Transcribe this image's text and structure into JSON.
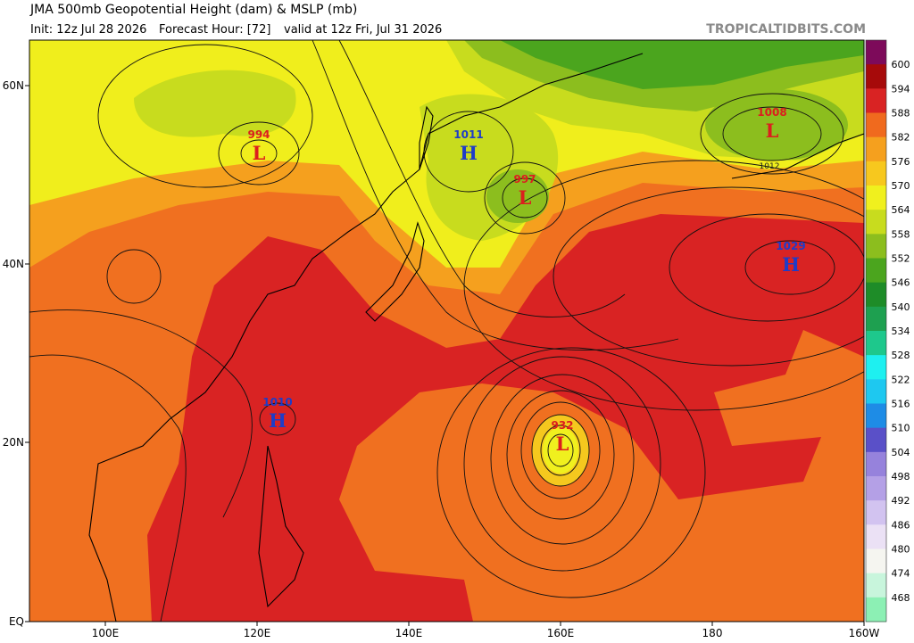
{
  "header": {
    "title": "JMA 500mb Geopotential Height (dam) & MSLP (mb)",
    "init": "Init: 12z Jul 28 2026",
    "forecast": "Forecast Hour: [72]",
    "valid": "valid at 12z Fri, Jul 31 2026",
    "watermark": "TROPICALTIDBITS.COM"
  },
  "map": {
    "lat_labels": [
      "60N",
      "40N",
      "20N",
      "EQ"
    ],
    "lon_labels": [
      "100E",
      "120E",
      "140E",
      "160E",
      "180",
      "160W"
    ],
    "centers": [
      {
        "type": "L",
        "value": 994
      },
      {
        "type": "H",
        "value": 1011
      },
      {
        "type": "L",
        "value": 997
      },
      {
        "type": "L",
        "value": 1008
      },
      {
        "type": "H",
        "value": 1029
      },
      {
        "type": "H",
        "value": 1010
      },
      {
        "type": "L",
        "value": 932
      }
    ],
    "contour_labels": [
      1012
    ]
  },
  "colorbar": {
    "labels": [
      600,
      594,
      588,
      582,
      576,
      570,
      564,
      558,
      552,
      546,
      540,
      534,
      528,
      522,
      516,
      510,
      504,
      498,
      492,
      486,
      480,
      474,
      468
    ],
    "colors": [
      "#7d0a5a",
      "#a60a0a",
      "#d92323",
      "#f06a1e",
      "#f5a01e",
      "#f7c81e",
      "#f0f01e",
      "#c8dc1e",
      "#8cbe1e",
      "#4ba51e",
      "#1e8c28",
      "#1ea050",
      "#1ec88c",
      "#1ef0f0",
      "#1ec8f0",
      "#1e8ce6",
      "#5a50c8",
      "#9682dc",
      "#b4a0e6",
      "#d2c3f0",
      "#ebe1f5",
      "#f5f5f0",
      "#c8f5dc",
      "#8cf0b4"
    ]
  }
}
